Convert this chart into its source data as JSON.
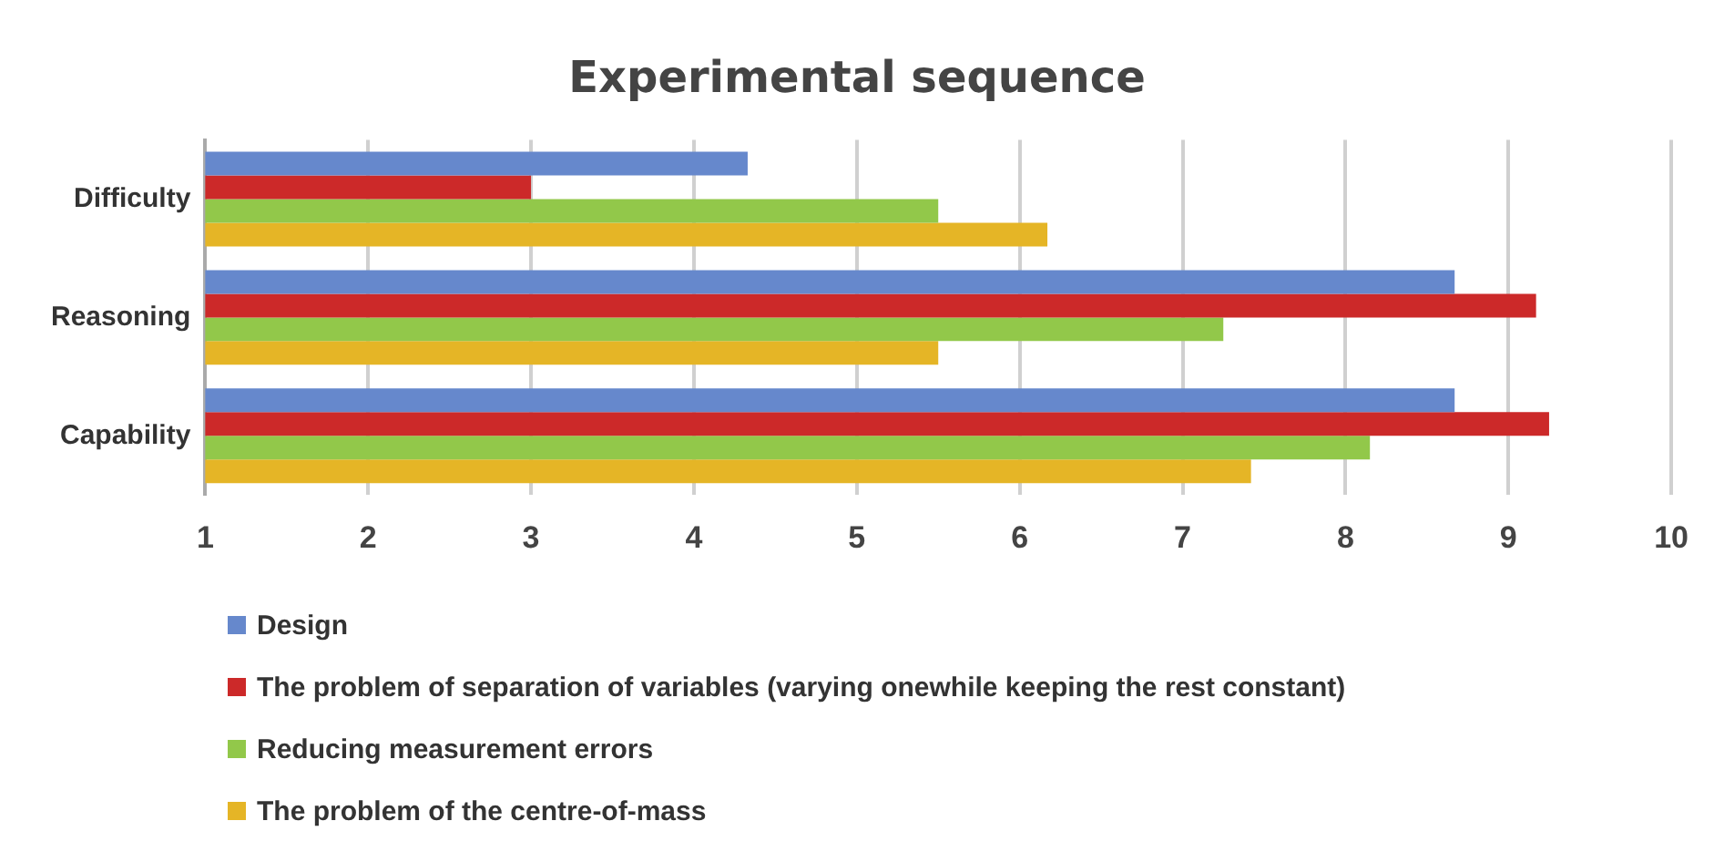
{
  "chart_data": {
    "type": "bar",
    "orientation": "horizontal",
    "title": "Experimental sequence",
    "categories": [
      "Difficulty",
      "Reasoning",
      "Capability"
    ],
    "series": [
      {
        "name": "Design",
        "color": "#6688cc",
        "values": [
          4.33,
          8.67,
          8.67
        ]
      },
      {
        "name": "The problem of separation of variables (varying onewhile keeping the rest constant)",
        "color": "#cc2929",
        "values": [
          3,
          9.17,
          9.25
        ]
      },
      {
        "name": "Reducing measurement errors",
        "color": "#92c84a",
        "values": [
          5.5,
          7.25,
          8.15
        ]
      },
      {
        "name": "The problem of the centre-of-mass",
        "color": "#e5b526",
        "values": [
          6.17,
          5.5,
          7.42
        ]
      }
    ],
    "xlim": [
      1,
      10
    ],
    "xticks": [
      1,
      2,
      3,
      4,
      5,
      6,
      7,
      8,
      9,
      10
    ],
    "grid": "x",
    "legend": "bottom"
  }
}
